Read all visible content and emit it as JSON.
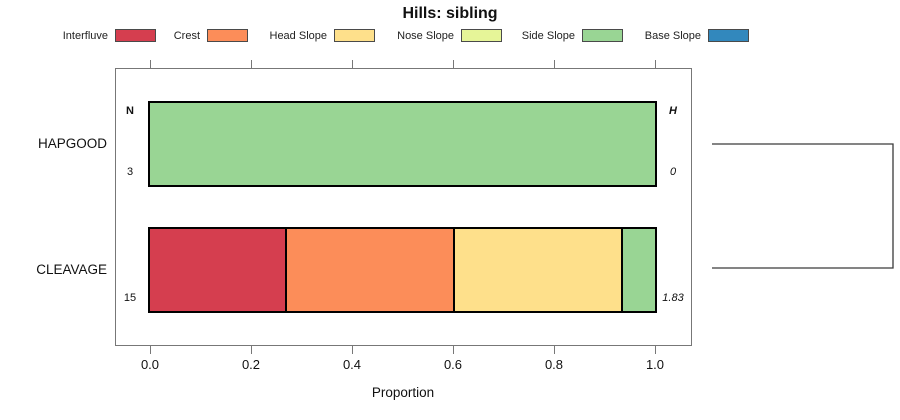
{
  "title": "Hills: sibling",
  "chart_data": {
    "type": "bar",
    "subtype": "horizontal-stacked-proportion",
    "title": "Hills: sibling",
    "xlabel": "Proportion",
    "x_ticks": [
      "0.0",
      "0.2",
      "0.4",
      "0.6",
      "0.8",
      "1.0"
    ],
    "xlim": [
      0,
      1
    ],
    "grid": false,
    "legend_position": "top",
    "categories": [
      "HAPGOOD",
      "CLEAVAGE"
    ],
    "series": [
      {
        "name": "Interfluve",
        "color": "#D53E4F",
        "values": [
          0,
          0.267
        ]
      },
      {
        "name": "Crest",
        "color": "#FC8D59",
        "values": [
          0,
          0.333
        ]
      },
      {
        "name": "Head Slope",
        "color": "#FEE08B",
        "values": [
          0,
          0.333
        ]
      },
      {
        "name": "Nose Slope",
        "color": "#E6F598",
        "values": [
          0,
          0
        ]
      },
      {
        "name": "Side Slope",
        "color": "#99D594",
        "values": [
          1.0,
          0.067
        ]
      },
      {
        "name": "Base Slope",
        "color": "#3288BD",
        "values": [
          0,
          0
        ]
      }
    ],
    "row_annotations": {
      "left_header": "N",
      "right_header": "H",
      "rows": [
        {
          "category": "HAPGOOD",
          "n": "3",
          "h": "0"
        },
        {
          "category": "CLEAVAGE",
          "n": "15",
          "h": "1.83"
        }
      ]
    },
    "dendrogram": {
      "position": "right",
      "joins": [
        [
          "HAPGOOD",
          "CLEAVAGE"
        ]
      ]
    }
  }
}
